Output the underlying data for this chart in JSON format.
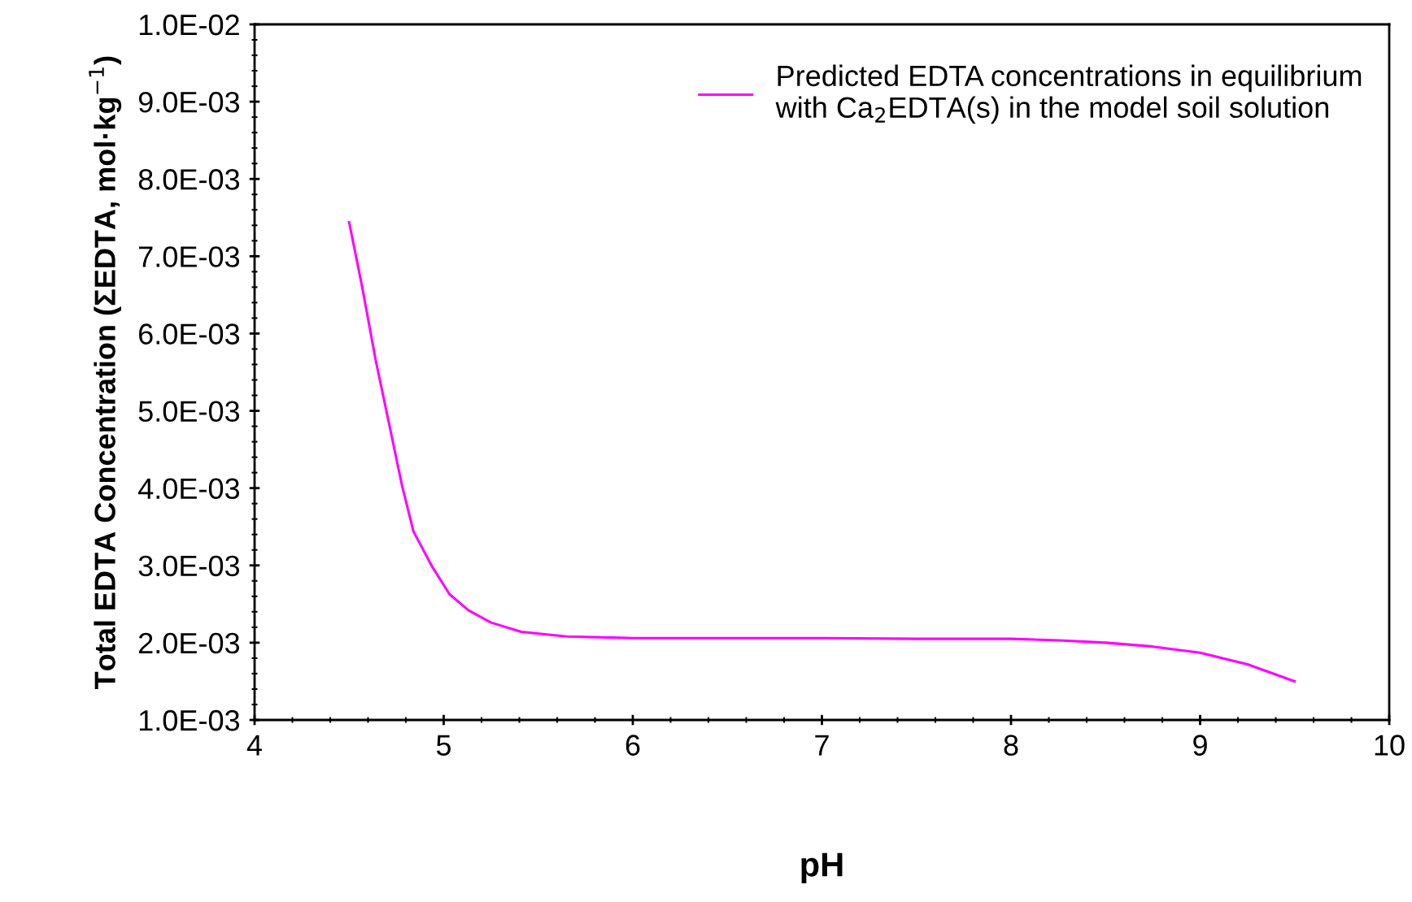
{
  "chart_data": {
    "type": "line",
    "xlabel": "pH",
    "ylabel": "Total EDTA Concentration (ΣEDTA, mol·kg$^{−1}$)",
    "series": [
      {
        "name": "Predicted EDTA concentrations in equilibrium\nwith Ca$_{2}$EDTA(s) in the model soil solution",
        "color": "#ff00ff",
        "x": [
          4.5,
          4.57,
          4.64,
          4.72,
          4.78,
          4.84,
          4.94,
          5.03,
          5.13,
          5.25,
          5.41,
          5.65,
          6.0,
          6.5,
          7.0,
          7.5,
          8.0,
          8.25,
          8.5,
          8.75,
          9.0,
          9.25,
          9.5
        ],
        "values": [
          0.00744,
          0.00659,
          0.00566,
          0.00473,
          0.00403,
          0.00344,
          0.00298,
          0.00263,
          0.00242,
          0.00226,
          0.00214,
          0.00208,
          0.00206,
          0.00206,
          0.00206,
          0.00205,
          0.00205,
          0.00203,
          0.002,
          0.00195,
          0.00187,
          0.00172,
          0.0015
        ]
      }
    ],
    "xlim": [
      4,
      10
    ],
    "xticks": [
      4,
      5,
      6,
      7,
      8,
      9,
      10
    ],
    "ylim": [
      0.001,
      0.01
    ],
    "yticks": [
      {
        "value": 0.001,
        "label": "1.0E-03"
      },
      {
        "value": 0.002,
        "label": "2.0E-03"
      },
      {
        "value": 0.003,
        "label": "3.0E-03"
      },
      {
        "value": 0.004,
        "label": "4.0E-03"
      },
      {
        "value": 0.005,
        "label": "5.0E-03"
      },
      {
        "value": 0.006,
        "label": "6.0E-03"
      },
      {
        "value": 0.007,
        "label": "7.0E-03"
      },
      {
        "value": 0.008,
        "label": "8.0E-03"
      },
      {
        "value": 0.009,
        "label": "9.0E-03"
      },
      {
        "value": 0.01,
        "label": "1.0E-02"
      }
    ],
    "legend": "top right",
    "grid": false,
    "marker": "none",
    "line_style": "solid"
  }
}
